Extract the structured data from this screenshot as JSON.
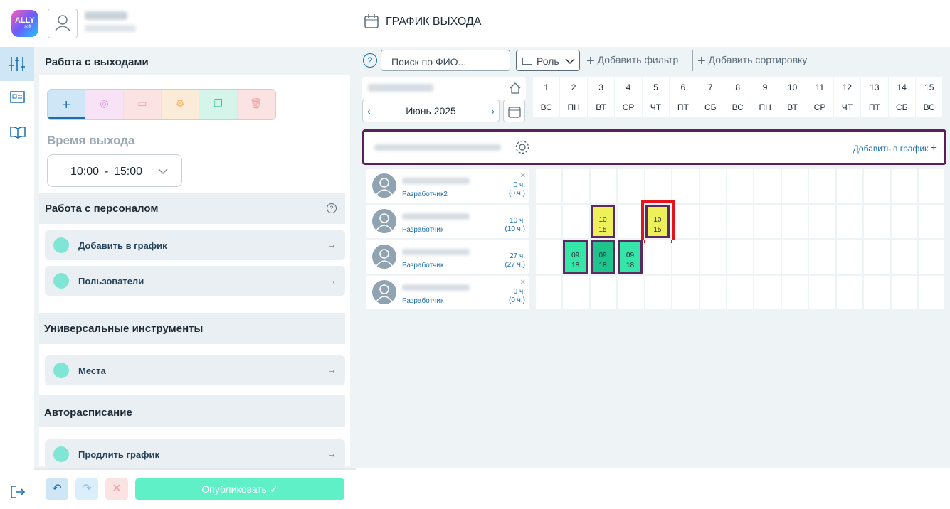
{
  "header": {
    "logo": "ALLY",
    "logo_sub": "soft",
    "title": "ГРАФИК ВЫХОДА"
  },
  "sidebar": {
    "section1": "Работа с выходами",
    "time_label": "Время выхода",
    "time_start": "10:00",
    "time_sep": "-",
    "time_end": "15:00",
    "section2": "Работа с персоналом",
    "help": "?",
    "staff_items": [
      "Добавить в график",
      "Пользователи"
    ],
    "section3": "Универсальные инструменты",
    "tools_items": [
      "Места"
    ],
    "section4": "Авторасписание",
    "auto_items": [
      "Продлить график"
    ],
    "publish": "Опубликовать"
  },
  "toolbar": {
    "help": "?",
    "search_placeholder": "Поиск по ФИО...",
    "role": "Роль",
    "add_filter": "Добавить фильтр",
    "add_sort": "Добавить сортировку"
  },
  "calendar": {
    "month": "Июнь 2025",
    "location_action": "Добавить в график",
    "days": [
      {
        "day": "1",
        "weekday": "ВС"
      },
      {
        "day": "2",
        "weekday": "ПН"
      },
      {
        "day": "3",
        "weekday": "ВТ"
      },
      {
        "day": "4",
        "weekday": "СР"
      },
      {
        "day": "5",
        "weekday": "ЧТ"
      },
      {
        "day": "6",
        "weekday": "ПТ"
      },
      {
        "day": "7",
        "weekday": "СБ"
      },
      {
        "day": "8",
        "weekday": "ВС"
      },
      {
        "day": "9",
        "weekday": "ПН"
      },
      {
        "day": "10",
        "weekday": "ВТ"
      },
      {
        "day": "11",
        "weekday": "СР"
      },
      {
        "day": "12",
        "weekday": "ЧТ"
      },
      {
        "day": "13",
        "weekday": "ПТ"
      },
      {
        "day": "14",
        "weekday": "СБ"
      },
      {
        "day": "15",
        "weekday": "ВС"
      }
    ]
  },
  "employees": [
    {
      "role": "Разработчик2",
      "hours": "0 ч.",
      "hours_total": "(0 ч.)",
      "shifts": []
    },
    {
      "role": "Разработчик",
      "hours": "10 ч.",
      "hours_total": "(10 ч.)",
      "shifts": [
        {
          "day": 3,
          "start": "10",
          "end": "15",
          "color": "#eef05a"
        },
        {
          "day": 5,
          "start": "10",
          "end": "15",
          "color": "#eef05a",
          "highlighted": true
        }
      ]
    },
    {
      "role": "Разработчик",
      "hours": "27 ч.",
      "hours_total": "(27 ч.)",
      "shifts": [
        {
          "day": 2,
          "start": "09",
          "end": "18",
          "color": "#36e6a8"
        },
        {
          "day": 3,
          "start": "09",
          "end": "18",
          "color": "#1fc48c"
        },
        {
          "day": 4,
          "start": "09",
          "end": "18",
          "color": "#36e6a8"
        }
      ]
    },
    {
      "role": "Разработчик",
      "hours": "0 ч.",
      "hours_total": "(0 ч.)",
      "shifts": []
    }
  ]
}
